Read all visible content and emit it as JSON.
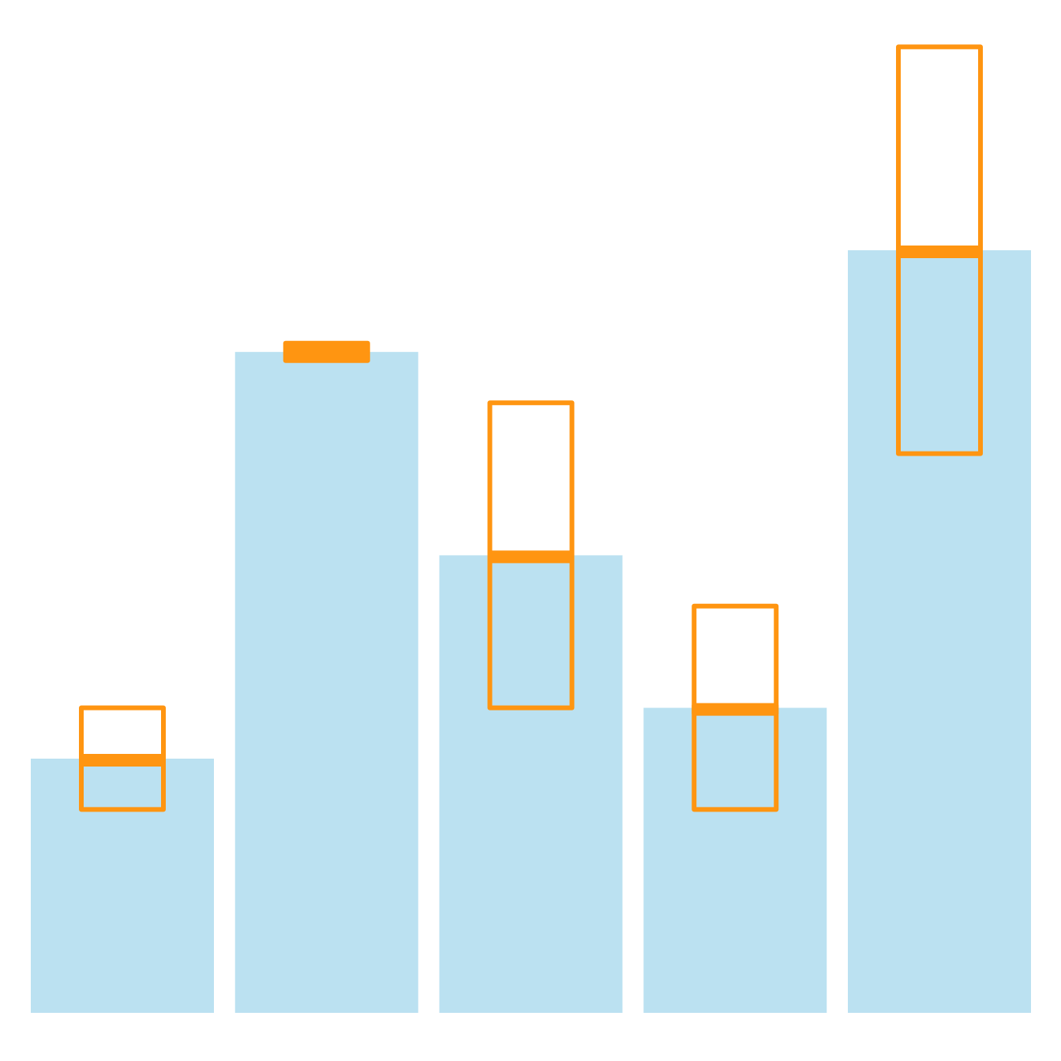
{
  "chart_data": {
    "type": "bar",
    "categories": [
      "",
      "",
      "",
      "",
      ""
    ],
    "values": [
      10,
      26,
      18,
      12,
      30
    ],
    "error_boxes": [
      {
        "low": 8,
        "high": 12
      },
      {
        "low": 26,
        "high": 26
      },
      {
        "low": 12,
        "high": 24
      },
      {
        "low": 8,
        "high": 16
      },
      {
        "low": 22,
        "high": 38
      }
    ],
    "title": "",
    "xlabel": "",
    "ylabel": "",
    "ylim": [
      0,
      40
    ],
    "grid": false,
    "legend": "none",
    "colors": {
      "bar": "#bbe1f1",
      "box": "#ff9511",
      "background": "#ffffff"
    }
  }
}
